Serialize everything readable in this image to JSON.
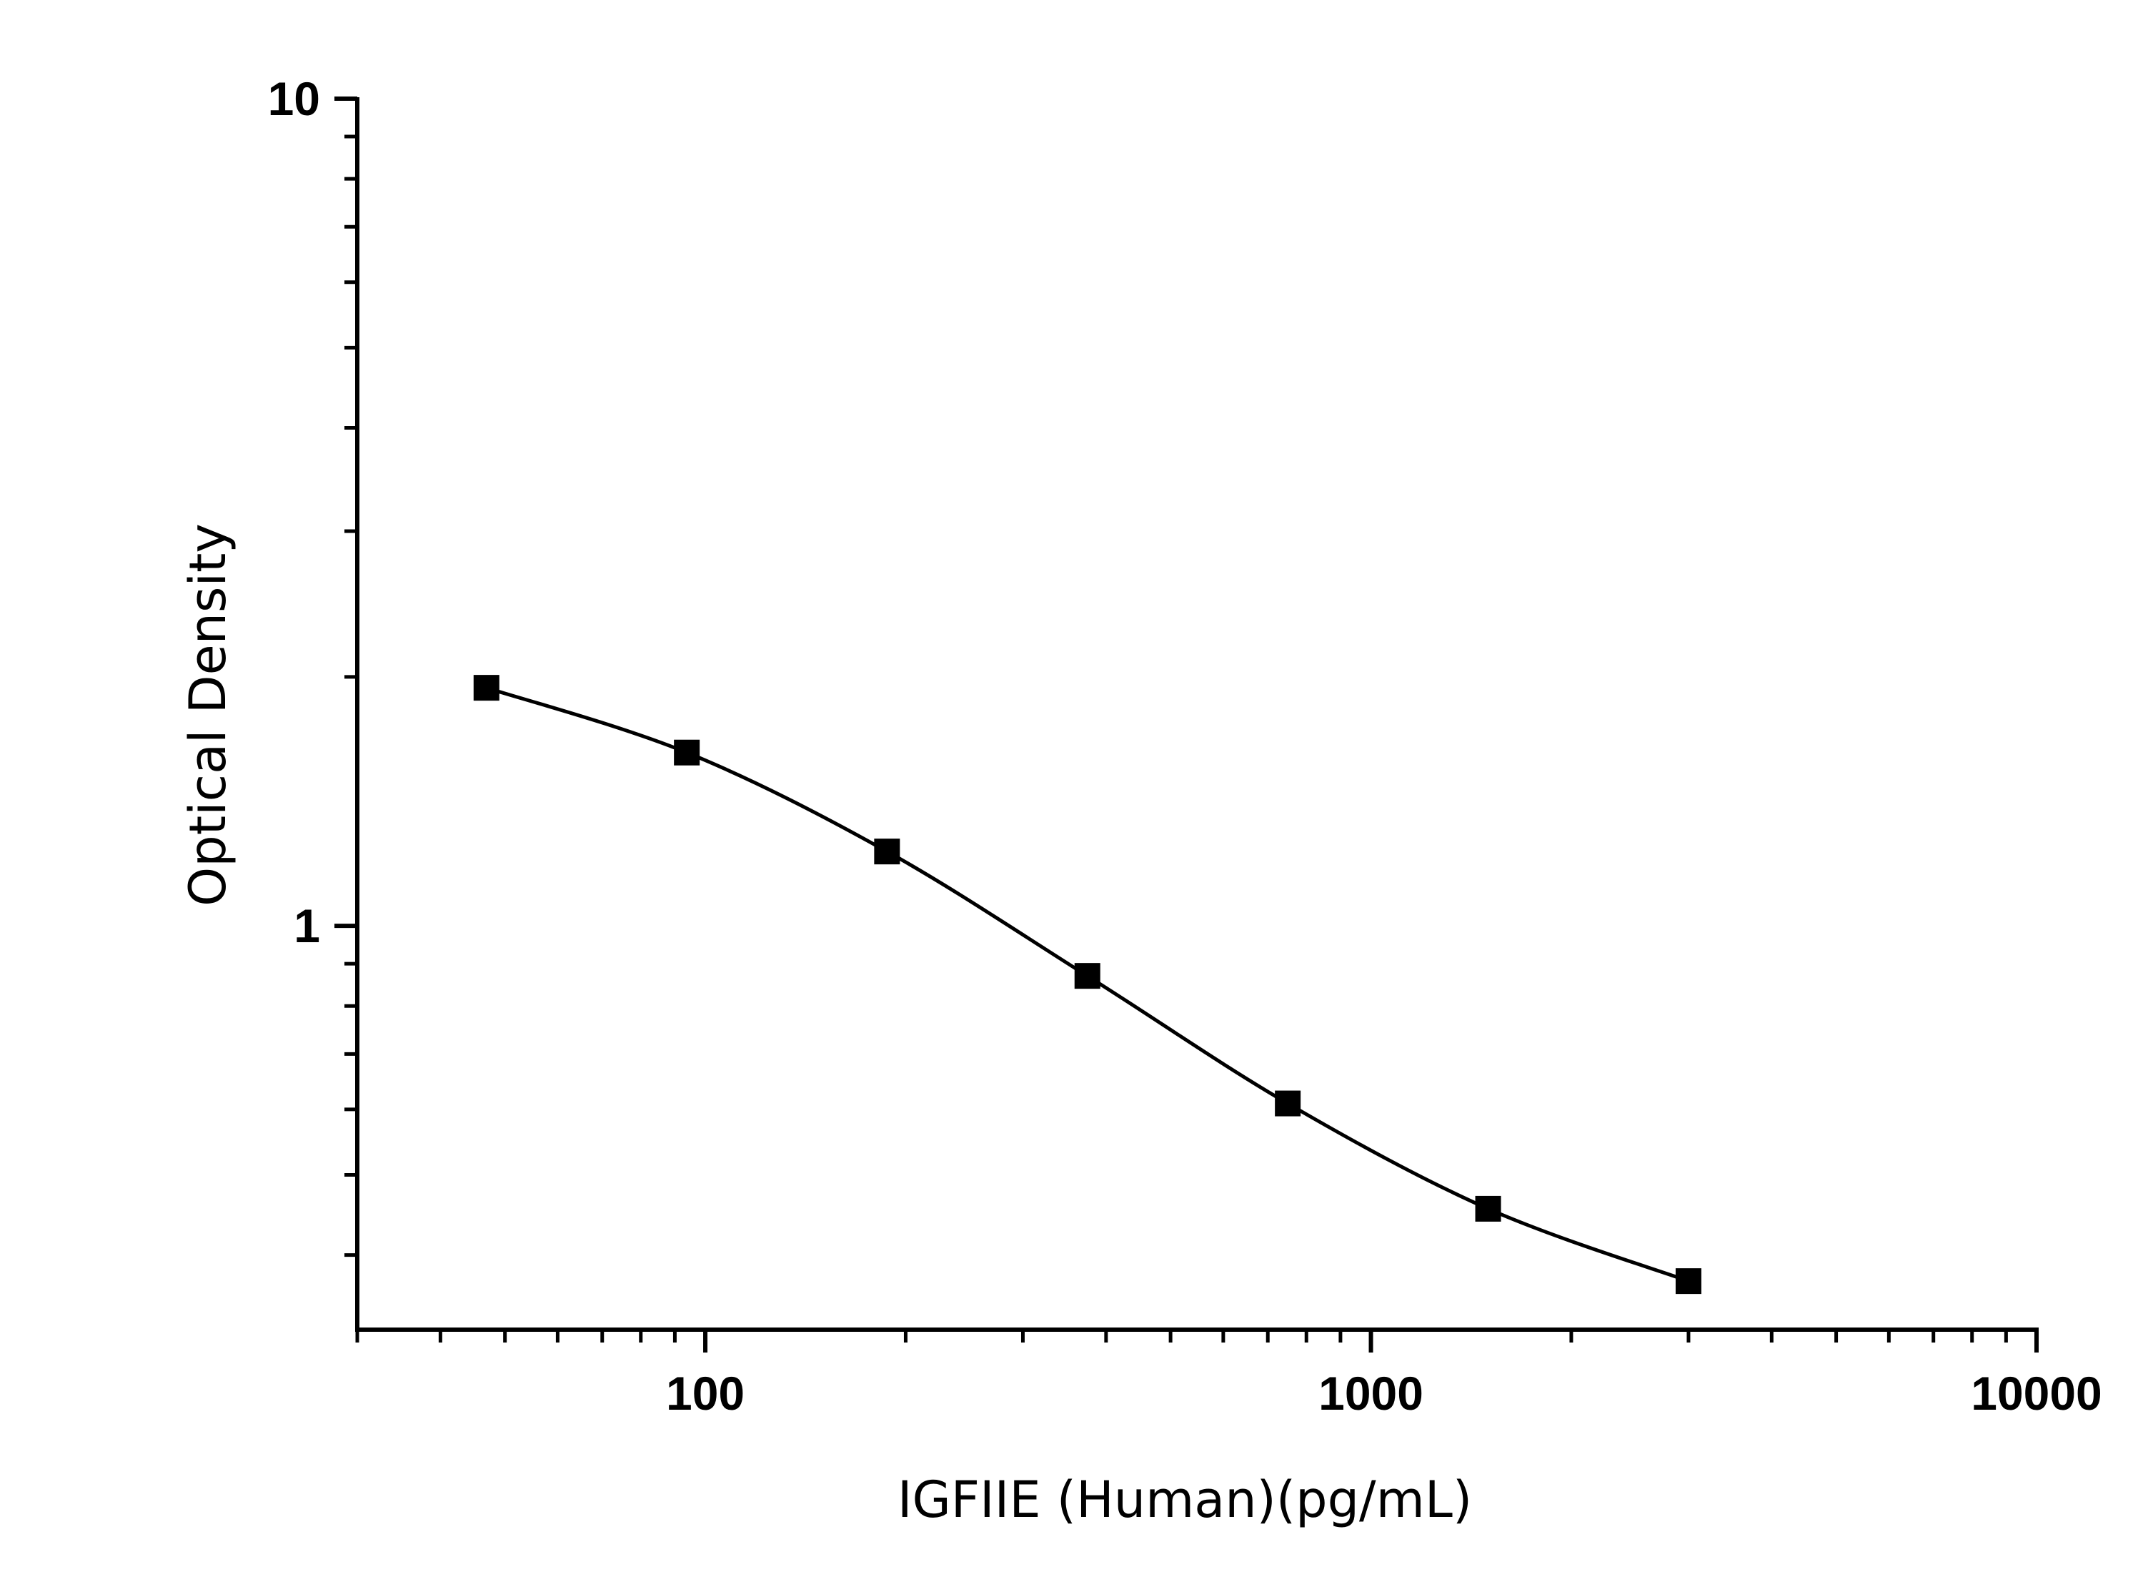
{
  "chart_data": {
    "type": "scatter",
    "title": "",
    "xlabel": "IGFIIE (Human)(pg/mL)",
    "ylabel": "Optical Density",
    "x_scale": "log",
    "y_scale": "log",
    "xlim": [
      30,
      10000
    ],
    "ylim": [
      0.325,
      10
    ],
    "x_ticks": [
      {
        "value": 100,
        "label": "100"
      },
      {
        "value": 1000,
        "label": "1000"
      },
      {
        "value": 10000,
        "label": "10000"
      }
    ],
    "y_ticks": [
      {
        "value": 1,
        "label": "1"
      },
      {
        "value": 10,
        "label": "10"
      }
    ],
    "grid": false,
    "legend": "none",
    "colors": {
      "axis": "#000000",
      "series": "#000000"
    },
    "series": [
      {
        "marker": "square",
        "fit_line": true,
        "x": [
          46.9,
          93.8,
          187.5,
          375,
          750,
          1500,
          3000
        ],
        "y": [
          1.94,
          1.62,
          1.23,
          0.87,
          0.61,
          0.455,
          0.372
        ]
      }
    ]
  }
}
